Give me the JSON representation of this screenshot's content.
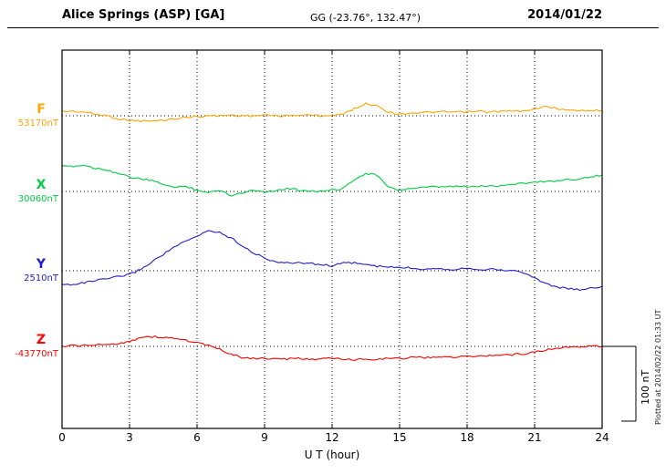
{
  "header": {
    "station": "Alice Springs (ASP)  [GA]",
    "coords": "GG (-23.76°, 132.47°)",
    "date": "2014/01/22"
  },
  "footer": {
    "xlabel": "U T (hour)"
  },
  "side": {
    "scale_label": "100 nT",
    "plotted_at": "Plotted at 2014/02/22 01:33 UT"
  },
  "chart_data": {
    "type": "line",
    "title": "Alice Springs (ASP) [GA] magnetogram 2014/01/22",
    "xlabel": "U T (hour)",
    "xlim": [
      0,
      24
    ],
    "x_ticks": [
      0,
      3,
      6,
      9,
      12,
      15,
      18,
      21,
      24
    ],
    "x_step_hours": 0.5,
    "scale_bar_nT": 100,
    "grid": "dotted",
    "legend_position": "left",
    "offset_unit": "nT relative to baseline",
    "gridlines": {
      "vertical_hours": [
        3,
        6,
        9,
        12,
        15,
        18,
        21
      ],
      "style": "dotted"
    },
    "series": [
      {
        "name": "F",
        "label": "F",
        "baseline_label": "53170nT",
        "baseline_nT": 53170,
        "color": "#FFA500",
        "values": [
          6,
          6,
          5,
          2,
          0,
          -4,
          -6,
          -7,
          -7,
          -6,
          -4,
          -2,
          -1,
          0,
          0,
          1,
          0,
          0,
          1,
          0,
          0,
          1,
          1,
          0,
          1,
          2,
          10,
          16,
          14,
          5,
          2,
          4,
          4,
          5,
          5,
          5,
          5,
          6,
          5,
          6,
          6,
          6,
          10,
          12,
          10,
          7,
          7,
          7,
          7
        ]
      },
      {
        "name": "X",
        "label": "X",
        "baseline_label": "30060nT",
        "baseline_nT": 30060,
        "color": "#00CC44",
        "values": [
          33,
          34,
          35,
          31,
          29,
          24,
          19,
          17,
          14,
          10,
          5,
          7,
          2,
          -2,
          2,
          -5,
          -2,
          2,
          0,
          1,
          4,
          2,
          1,
          0,
          2,
          4,
          17,
          24,
          22,
          5,
          2,
          4,
          5,
          6,
          6,
          7,
          6,
          7,
          7,
          8,
          10,
          11,
          12,
          14,
          14,
          16,
          17,
          19,
          22
        ]
      },
      {
        "name": "Y",
        "label": "Y",
        "baseline_label": "2510nT",
        "baseline_nT": 2510,
        "color": "#2020CC",
        "values": [
          -19,
          -18,
          -16,
          -13,
          -11,
          -8,
          -5,
          2,
          12,
          22,
          32,
          39,
          46,
          54,
          51,
          44,
          34,
          24,
          17,
          12,
          10,
          11,
          10,
          8,
          7,
          10,
          11,
          8,
          6,
          5,
          4,
          4,
          2,
          4,
          2,
          2,
          4,
          2,
          2,
          1,
          0,
          -2,
          -10,
          -17,
          -22,
          -24,
          -26,
          -23,
          -21
        ]
      },
      {
        "name": "Z",
        "label": "Z",
        "baseline_label": "-43770nT",
        "baseline_nT": -43770,
        "color": "#FF0000",
        "values": [
          0,
          1,
          1,
          2,
          2,
          4,
          7,
          12,
          13,
          12,
          11,
          8,
          5,
          1,
          -4,
          -10,
          -15,
          -16,
          -16,
          -17,
          -17,
          -16,
          -17,
          -17,
          -16,
          -17,
          -18,
          -17,
          -17,
          -16,
          -16,
          -15,
          -15,
          -15,
          -13,
          -15,
          -13,
          -13,
          -12,
          -12,
          -11,
          -10,
          -7,
          -5,
          -2,
          -1,
          0,
          0,
          0
        ]
      }
    ]
  }
}
